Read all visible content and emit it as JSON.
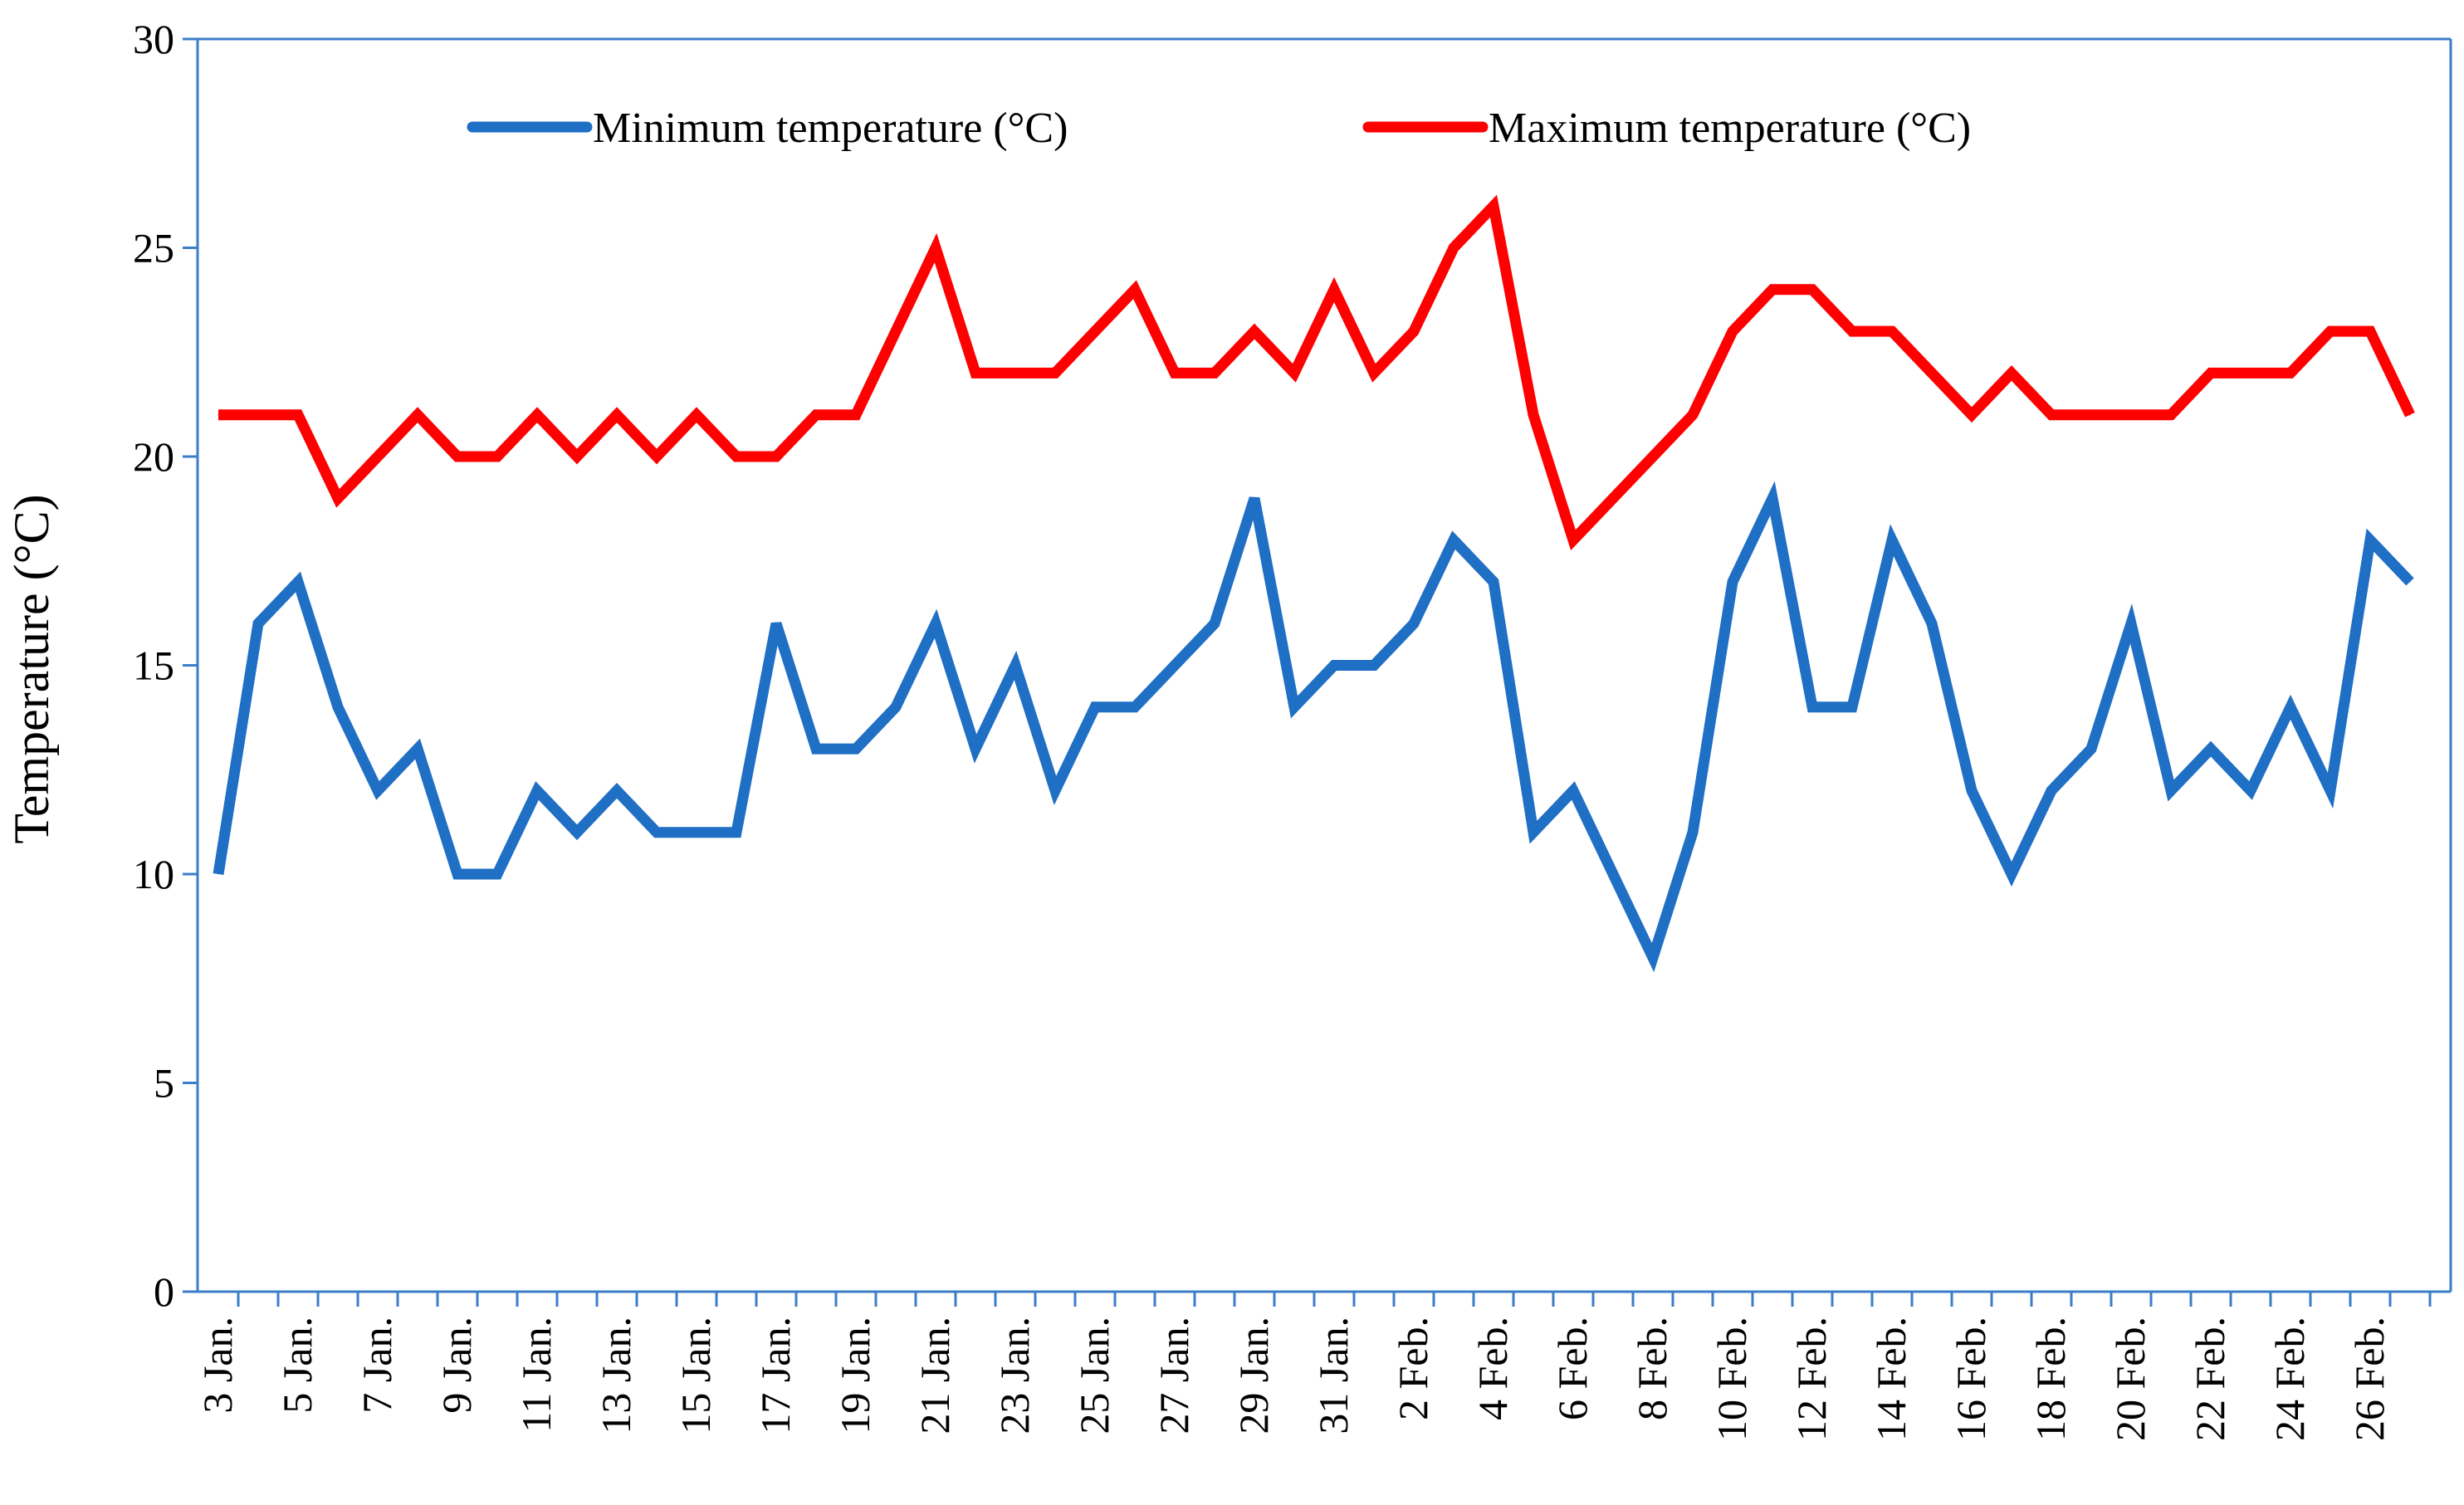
{
  "chart_data": {
    "type": "line",
    "title": "",
    "xlabel": "",
    "ylabel": "Temperature (°C)",
    "ylim": [
      0,
      30
    ],
    "yticks": [
      0,
      5,
      10,
      15,
      20,
      25,
      30
    ],
    "grid": false,
    "legend_position": "top",
    "axis_color": "#3b7ec8",
    "x": [
      "3 Jan.",
      "4 Jan.",
      "5 Jan.",
      "6 Jan.",
      "7 Jan.",
      "8 Jan.",
      "9 Jan.",
      "10 Jan.",
      "11 Jan.",
      "12 Jan.",
      "13 Jan.",
      "14 Jan.",
      "15 Jan.",
      "16 Jan.",
      "17 Jan.",
      "18 Jan.",
      "19 Jan.",
      "20 Jan.",
      "21 Jan.",
      "22 Jan.",
      "23 Jan.",
      "24 Jan.",
      "25 Jan.",
      "26 Jan.",
      "27 Jan.",
      "28 Jan.",
      "29 Jan.",
      "30 Jan.",
      "31 Jan.",
      "1 Feb.",
      "2 Feb.",
      "3 Feb.",
      "4 Feb.",
      "5 Feb.",
      "6 Feb.",
      "7 Feb.",
      "8 Feb.",
      "9 Feb.",
      "10 Feb.",
      "11 Feb.",
      "12 Feb.",
      "13 Feb.",
      "14 Feb.",
      "15 Feb.",
      "16 Feb.",
      "17 Feb.",
      "18 Feb.",
      "19 Feb.",
      "20 Feb.",
      "21 Feb.",
      "22 Feb.",
      "23 Feb.",
      "24 Feb.",
      "25 Feb.",
      "26 Feb.",
      "27 Feb."
    ],
    "tick_labels": [
      "3 Jan.",
      "5 Jan.",
      "7 Jan.",
      "9 Jan.",
      "11 Jan.",
      "13 Jan.",
      "15 Jan.",
      "17 Jan.",
      "19 Jan.",
      "21 Jan.",
      "23 Jan.",
      "25 Jan.",
      "27 Jan.",
      "29 Jan.",
      "31 Jan.",
      "2 Feb.",
      "4 Feb.",
      "6 Feb.",
      "8 Feb.",
      "10 Feb.",
      "12 Feb.",
      "14 Feb.",
      "16 Feb.",
      "18 Feb.",
      "20 Feb.",
      "22 Feb.",
      "24 Feb.",
      "26 Feb."
    ],
    "series": [
      {
        "name": "Minimum temperature (°C)",
        "color": "#1f6fc5",
        "values": [
          10,
          16,
          17,
          14,
          12,
          13,
          10,
          10,
          12,
          11,
          12,
          11,
          11,
          11,
          16,
          13,
          13,
          14,
          16,
          13,
          15,
          12,
          14,
          14,
          15,
          16,
          19,
          14,
          15,
          15,
          16,
          18,
          17,
          11,
          12,
          10,
          8,
          11,
          17,
          19,
          14,
          14,
          18,
          16,
          12,
          10,
          12,
          13,
          16,
          12,
          13,
          12,
          14,
          12,
          18,
          17
        ]
      },
      {
        "name": "Maximum temperature (°C)",
        "color": "#ff0000",
        "values": [
          21,
          21,
          21,
          19,
          20,
          21,
          20,
          20,
          21,
          20,
          21,
          20,
          21,
          20,
          20,
          21,
          21,
          23,
          25,
          22,
          22,
          22,
          23,
          24,
          22,
          22,
          23,
          22,
          24,
          22,
          23,
          25,
          26,
          21,
          18,
          19,
          20,
          21,
          23,
          24,
          24,
          23,
          23,
          22,
          21,
          22,
          21,
          21,
          21,
          21,
          22,
          22,
          22,
          23,
          23,
          21
        ]
      }
    ]
  }
}
